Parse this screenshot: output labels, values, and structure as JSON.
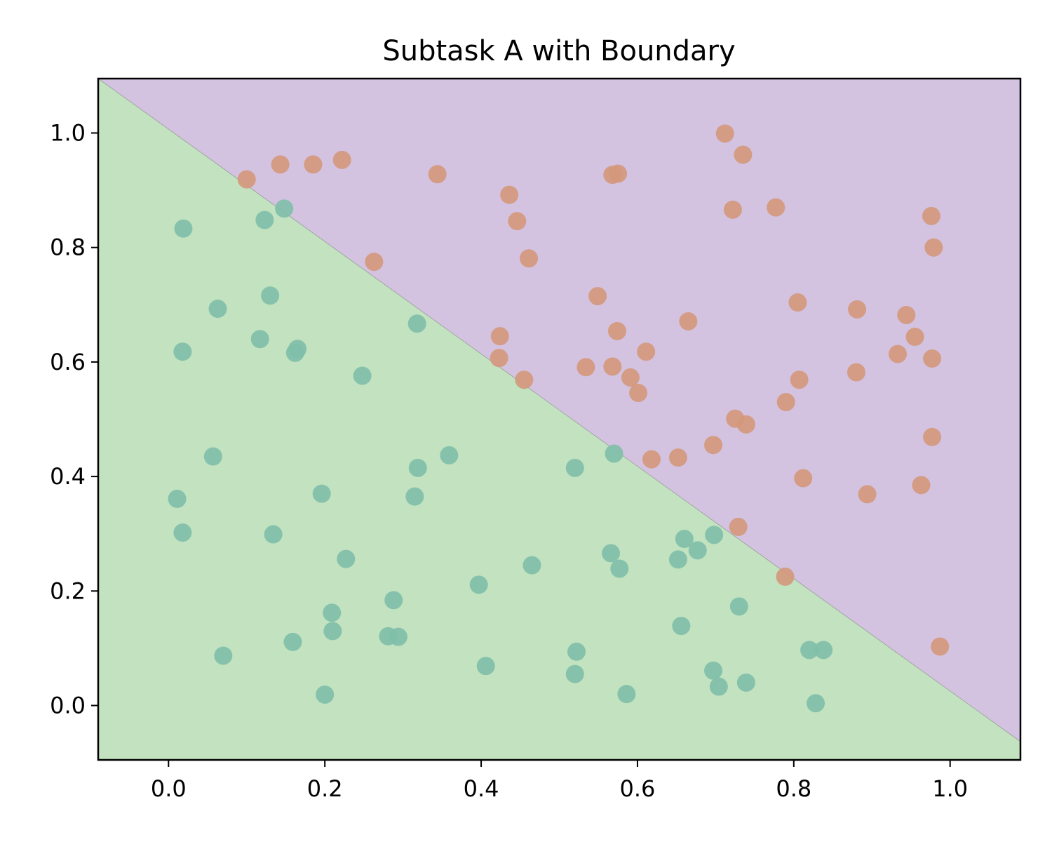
{
  "chart_data": {
    "type": "scatter",
    "title": "Subtask A with Boundary",
    "xlabel": "",
    "ylabel": "",
    "xlim": [
      -0.09,
      1.09
    ],
    "ylim": [
      -0.095,
      1.095
    ],
    "xticks": [
      "0.0",
      "0.2",
      "0.4",
      "0.6",
      "0.8",
      "1.0"
    ],
    "yticks": [
      "0.0",
      "0.2",
      "0.4",
      "0.6",
      "0.8",
      "1.0"
    ],
    "grid": false,
    "legend": "none",
    "boundary": {
      "type": "line",
      "points": [
        [
          -0.09,
          1.095
        ],
        [
          1.09,
          -0.063
        ]
      ]
    },
    "regions": [
      {
        "side": "below",
        "color": "#c2e2c0"
      },
      {
        "side": "above",
        "color": "#d3c3e0"
      }
    ],
    "series": [
      {
        "color": "#7fbfa8",
        "points": [
          [
            0.019,
            0.833
          ],
          [
            0.123,
            0.848
          ],
          [
            0.063,
            0.693
          ],
          [
            0.13,
            0.716
          ],
          [
            0.018,
            0.618
          ],
          [
            0.117,
            0.64
          ],
          [
            0.162,
            0.616
          ],
          [
            0.165,
            0.623
          ],
          [
            0.248,
            0.576
          ],
          [
            0.318,
            0.667
          ],
          [
            0.057,
            0.435
          ],
          [
            0.359,
            0.437
          ],
          [
            0.319,
            0.415
          ],
          [
            0.196,
            0.37
          ],
          [
            0.315,
            0.365
          ],
          [
            0.011,
            0.361
          ],
          [
            0.018,
            0.302
          ],
          [
            0.134,
            0.299
          ],
          [
            0.227,
            0.256
          ],
          [
            0.288,
            0.184
          ],
          [
            0.209,
            0.162
          ],
          [
            0.21,
            0.13
          ],
          [
            0.281,
            0.121
          ],
          [
            0.294,
            0.12
          ],
          [
            0.159,
            0.111
          ],
          [
            0.07,
            0.087
          ],
          [
            0.2,
            0.019
          ],
          [
            0.406,
            0.069
          ],
          [
            0.397,
            0.211
          ],
          [
            0.465,
            0.245
          ],
          [
            0.52,
            0.415
          ],
          [
            0.566,
            0.266
          ],
          [
            0.577,
            0.239
          ],
          [
            0.52,
            0.055
          ],
          [
            0.522,
            0.094
          ],
          [
            0.586,
            0.02
          ],
          [
            0.66,
            0.291
          ],
          [
            0.652,
            0.255
          ],
          [
            0.677,
            0.271
          ],
          [
            0.698,
            0.298
          ],
          [
            0.656,
            0.139
          ],
          [
            0.73,
            0.173
          ],
          [
            0.697,
            0.061
          ],
          [
            0.704,
            0.033
          ],
          [
            0.739,
            0.04
          ],
          [
            0.82,
            0.097
          ],
          [
            0.838,
            0.097
          ],
          [
            0.828,
            0.004
          ],
          [
            0.57,
            0.44
          ],
          [
            0.148,
            0.868
          ]
        ]
      },
      {
        "color": "#d4987b",
        "points": [
          [
            0.1,
            0.919
          ],
          [
            0.143,
            0.945
          ],
          [
            0.185,
            0.945
          ],
          [
            0.222,
            0.953
          ],
          [
            0.344,
            0.928
          ],
          [
            0.263,
            0.775
          ],
          [
            0.436,
            0.892
          ],
          [
            0.446,
            0.846
          ],
          [
            0.461,
            0.781
          ],
          [
            0.424,
            0.645
          ],
          [
            0.423,
            0.607
          ],
          [
            0.455,
            0.569
          ],
          [
            0.549,
            0.715
          ],
          [
            0.568,
            0.927
          ],
          [
            0.575,
            0.929
          ],
          [
            0.574,
            0.654
          ],
          [
            0.534,
            0.591
          ],
          [
            0.568,
            0.592
          ],
          [
            0.591,
            0.573
          ],
          [
            0.601,
            0.546
          ],
          [
            0.611,
            0.618
          ],
          [
            0.618,
            0.43
          ],
          [
            0.652,
            0.433
          ],
          [
            0.665,
            0.671
          ],
          [
            0.697,
            0.455
          ],
          [
            0.712,
            0.999
          ],
          [
            0.735,
            0.962
          ],
          [
            0.722,
            0.866
          ],
          [
            0.777,
            0.87
          ],
          [
            0.725,
            0.501
          ],
          [
            0.739,
            0.491
          ],
          [
            0.729,
            0.312
          ],
          [
            0.805,
            0.704
          ],
          [
            0.807,
            0.569
          ],
          [
            0.79,
            0.53
          ],
          [
            0.812,
            0.397
          ],
          [
            0.789,
            0.225
          ],
          [
            0.881,
            0.692
          ],
          [
            0.88,
            0.582
          ],
          [
            0.894,
            0.369
          ],
          [
            0.944,
            0.682
          ],
          [
            0.933,
            0.614
          ],
          [
            0.955,
            0.644
          ],
          [
            0.976,
            0.855
          ],
          [
            0.979,
            0.8
          ],
          [
            0.977,
            0.606
          ],
          [
            0.977,
            0.469
          ],
          [
            0.963,
            0.385
          ],
          [
            0.987,
            0.103
          ]
        ]
      }
    ]
  }
}
